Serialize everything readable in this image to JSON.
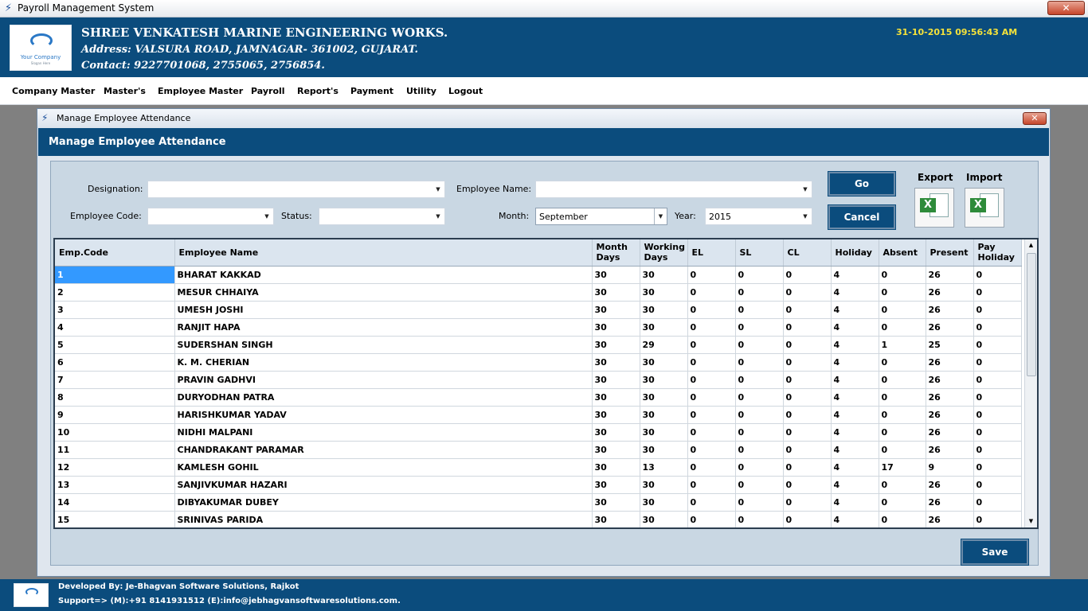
{
  "window": {
    "title": "Payroll Management System"
  },
  "header": {
    "logo_text": "Your Company",
    "logo_tagline": "Slogan Here",
    "company_name": "SHREE VENKATESH MARINE ENGINEERING WORKS.",
    "address": "Address: VALSURA ROAD, JAMNAGAR- 361002, GUJARAT.",
    "contact": "Contact: 9227701068, 2755065, 2756854.",
    "datetime": "31-10-2015 09:56:43 AM",
    "accent_color": "#0b4c7d",
    "datetime_color": "#f5e23a"
  },
  "menu": [
    "Company Master",
    "Master's",
    "Employee Master",
    "Payroll",
    "Report's",
    "Payment",
    "Utility",
    "Logout"
  ],
  "dialog": {
    "title": "Manage Employee Attendance",
    "heading": "Manage Employee Attendance",
    "filters": {
      "designation_label": "Designation:",
      "designation_value": "",
      "employee_name_label": "Employee Name:",
      "employee_name_value": "",
      "employee_code_label": "Employee Code:",
      "employee_code_value": "",
      "status_label": "Status:",
      "status_value": "",
      "month_label": "Month:",
      "month_value": "September",
      "year_label": "Year:",
      "year_value": "2015"
    },
    "buttons": {
      "go": "Go",
      "cancel": "Cancel",
      "export": "Export",
      "import": "Import",
      "save": "Save"
    },
    "grid": {
      "columns": [
        "Emp.Code",
        "Employee Name",
        "Month Days",
        "Working Days",
        "EL",
        "SL",
        "CL",
        "Holiday",
        "Absent",
        "Present",
        "Pay Holiday"
      ],
      "rows": [
        [
          "1",
          "BHARAT KAKKAD",
          "30",
          "30",
          "0",
          "0",
          "0",
          "4",
          "0",
          "26",
          "0"
        ],
        [
          "2",
          "MESUR CHHAIYA",
          "30",
          "30",
          "0",
          "0",
          "0",
          "4",
          "0",
          "26",
          "0"
        ],
        [
          "3",
          "UMESH JOSHI",
          "30",
          "30",
          "0",
          "0",
          "0",
          "4",
          "0",
          "26",
          "0"
        ],
        [
          "4",
          "RANJIT HAPA",
          "30",
          "30",
          "0",
          "0",
          "0",
          "4",
          "0",
          "26",
          "0"
        ],
        [
          "5",
          "SUDERSHAN SINGH",
          "30",
          "29",
          "0",
          "0",
          "0",
          "4",
          "1",
          "25",
          "0"
        ],
        [
          "6",
          "K. M. CHERIAN",
          "30",
          "30",
          "0",
          "0",
          "0",
          "4",
          "0",
          "26",
          "0"
        ],
        [
          "7",
          "PRAVIN GADHVI",
          "30",
          "30",
          "0",
          "0",
          "0",
          "4",
          "0",
          "26",
          "0"
        ],
        [
          "8",
          "DURYODHAN PATRA",
          "30",
          "30",
          "0",
          "0",
          "0",
          "4",
          "0",
          "26",
          "0"
        ],
        [
          "9",
          "HARISHKUMAR YADAV",
          "30",
          "30",
          "0",
          "0",
          "0",
          "4",
          "0",
          "26",
          "0"
        ],
        [
          "10",
          "NIDHI MALPANI",
          "30",
          "30",
          "0",
          "0",
          "0",
          "4",
          "0",
          "26",
          "0"
        ],
        [
          "11",
          "CHANDRAKANT PARAMAR",
          "30",
          "30",
          "0",
          "0",
          "0",
          "4",
          "0",
          "26",
          "0"
        ],
        [
          "12",
          "KAMLESH GOHIL",
          "30",
          "13",
          "0",
          "0",
          "0",
          "4",
          "17",
          "9",
          "0"
        ],
        [
          "13",
          "SANJIVKUMAR HAZARI",
          "30",
          "30",
          "0",
          "0",
          "0",
          "4",
          "0",
          "26",
          "0"
        ],
        [
          "14",
          "DIBYAKUMAR DUBEY",
          "30",
          "30",
          "0",
          "0",
          "0",
          "4",
          "0",
          "26",
          "0"
        ],
        [
          "15",
          "SRINIVAS PARIDA",
          "30",
          "30",
          "0",
          "0",
          "0",
          "4",
          "0",
          "26",
          "0"
        ]
      ]
    }
  },
  "footer": {
    "developed_by": "Developed By: Je-Bhagvan Software Solutions, Rajkot",
    "support": "Support=> (M):+91 8141931512 (E):info@jebhagvansoftwaresolutions.com."
  }
}
